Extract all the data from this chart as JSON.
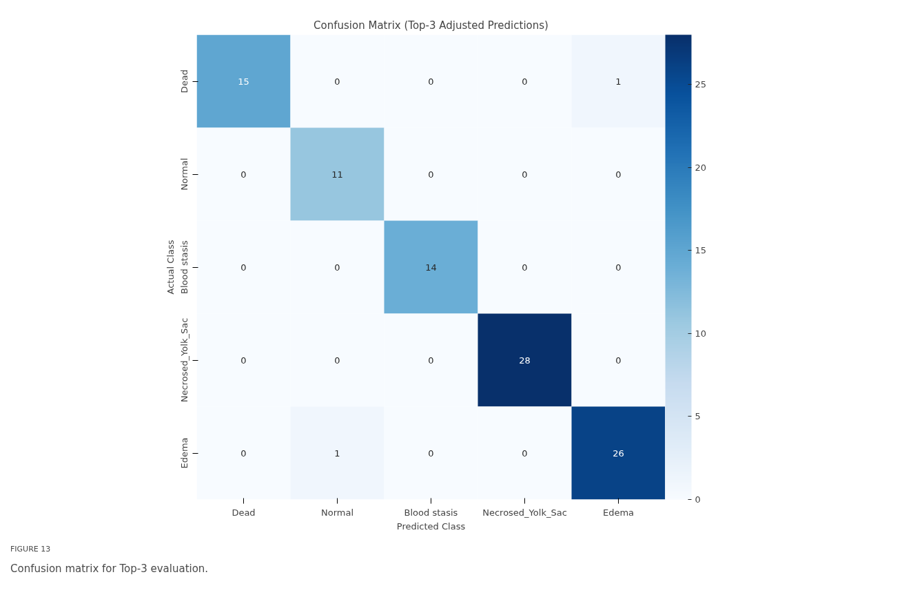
{
  "chart_data": {
    "type": "heatmap",
    "title": "Confusion Matrix (Top-3 Adjusted Predictions)",
    "xlabel": "Predicted Class",
    "ylabel": "Actual Class",
    "categories": [
      "Dead",
      "Normal",
      "Blood stasis",
      "Necrosed_Yolk_Sac",
      "Edema"
    ],
    "y_categories": [
      "Dead",
      "Normal",
      "Blood stasis",
      "Necrosed_Yolk_Sac",
      "Edema"
    ],
    "cells": [
      [
        15,
        0,
        0,
        0,
        1
      ],
      [
        0,
        11,
        0,
        0,
        0
      ],
      [
        0,
        0,
        14,
        0,
        0
      ],
      [
        0,
        0,
        0,
        28,
        0
      ],
      [
        0,
        1,
        0,
        0,
        26
      ]
    ],
    "clim": [
      0,
      28
    ],
    "cticks": [
      0,
      5,
      10,
      15,
      20,
      25
    ],
    "data_labels": true,
    "annotations": [
      "FIGURE 13",
      "Confusion matrix for Top-3 evaluation."
    ]
  }
}
